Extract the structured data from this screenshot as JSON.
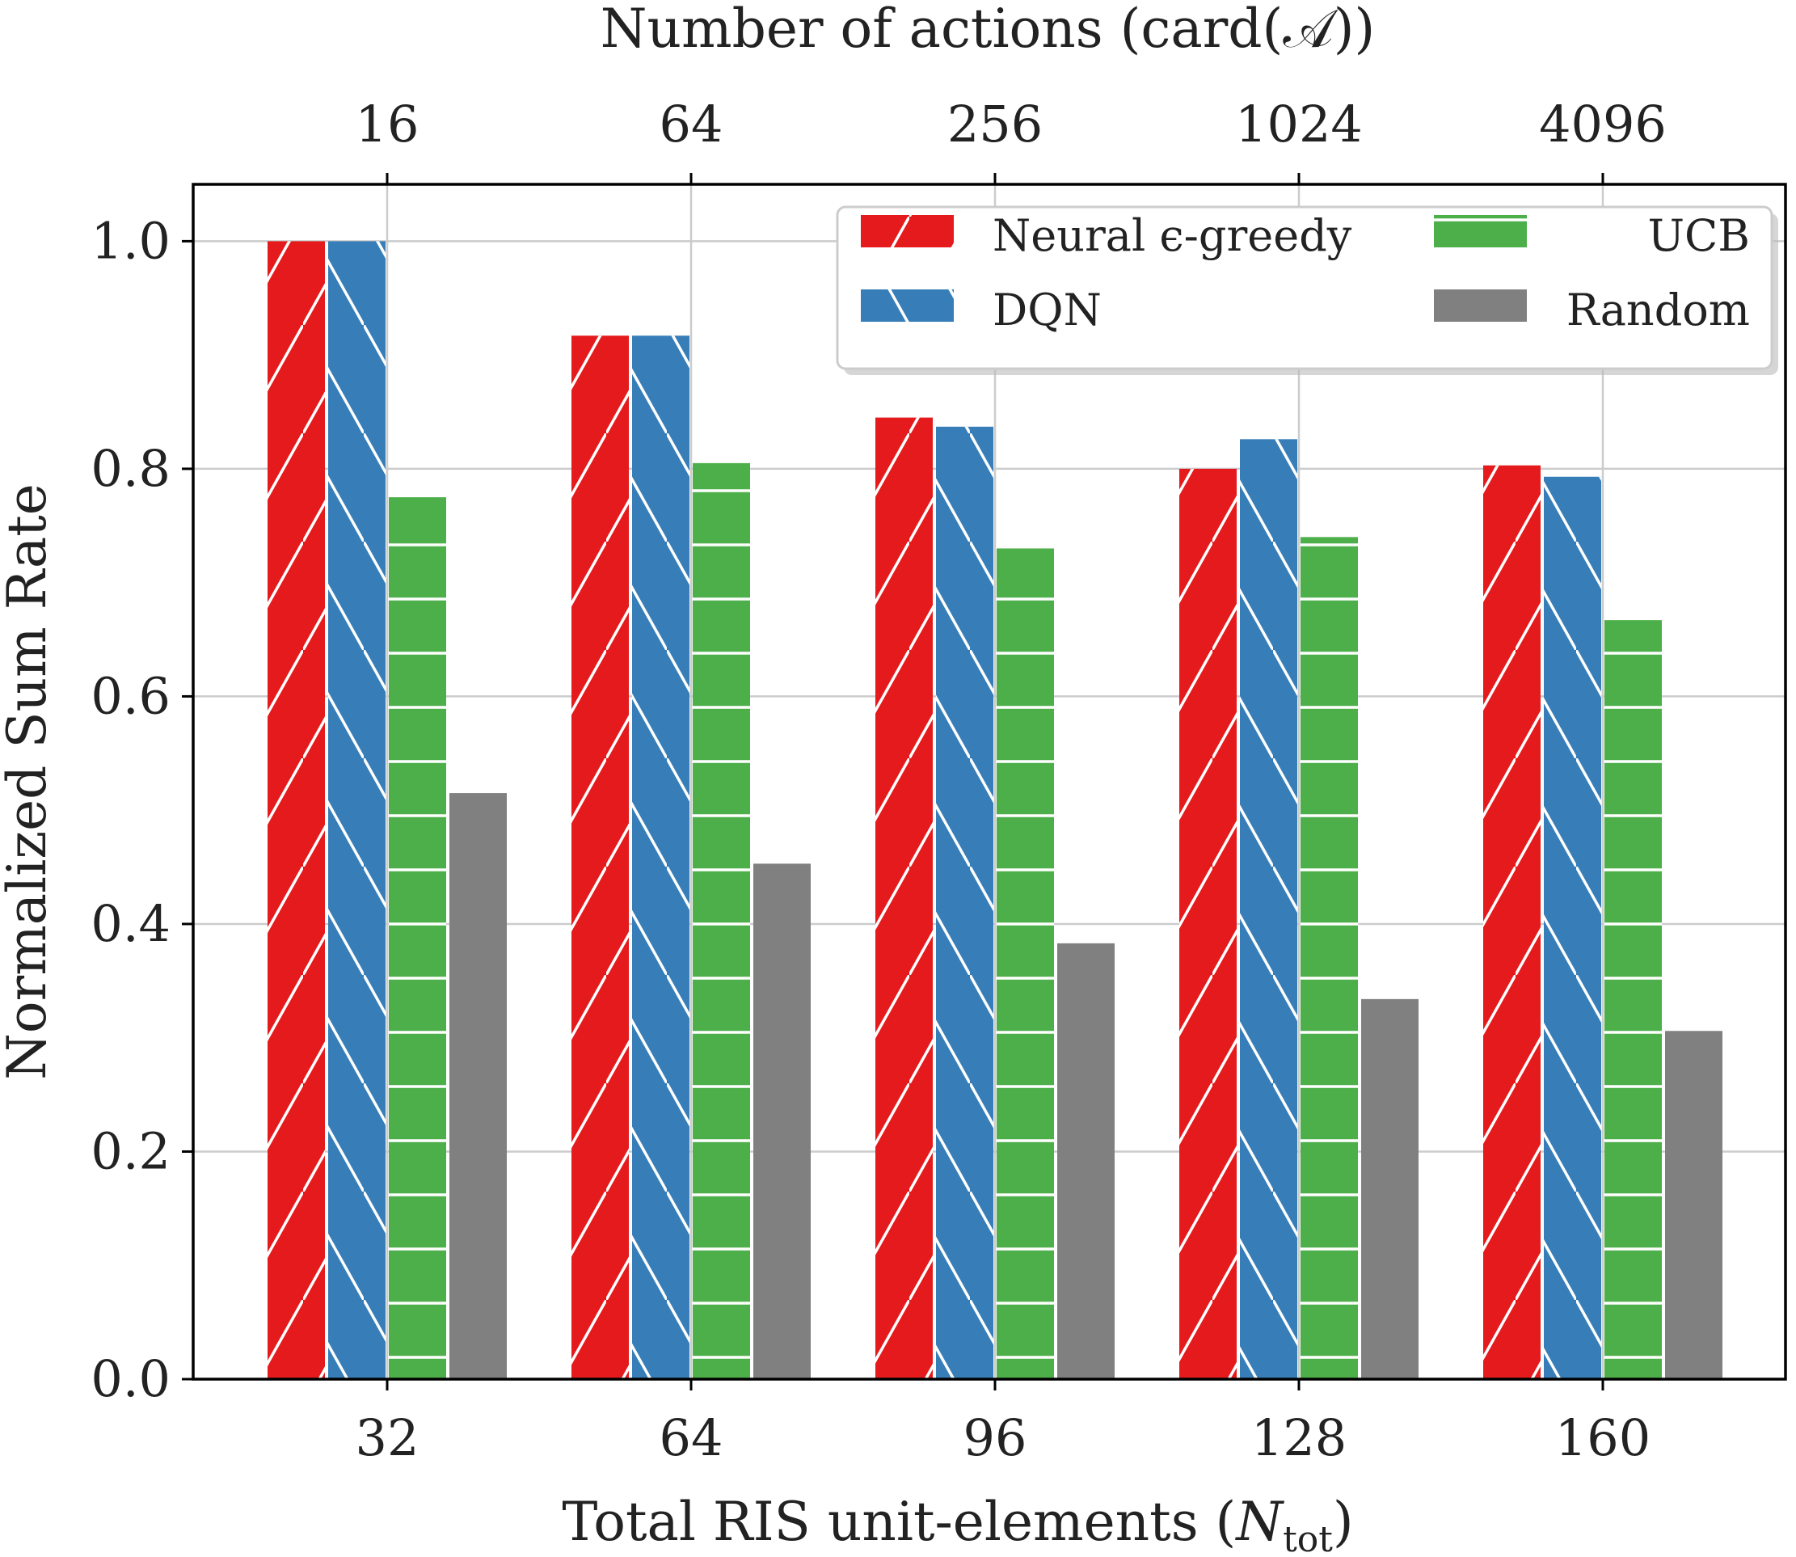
{
  "chart_data": {
    "type": "bar",
    "xlabel": "Total RIS unit-elements",
    "xlabel_symbol": "N",
    "xlabel_subscript": "tot",
    "top_xlabel": "Number of actions (card(𝒜))",
    "ylabel": "Normalized Sum Rate",
    "categories": [
      "32",
      "64",
      "96",
      "128",
      "160"
    ],
    "top_categories": [
      "16",
      "64",
      "256",
      "1024",
      "4096"
    ],
    "ylim": [
      0,
      1.05
    ],
    "yticks": [
      "0.0",
      "0.2",
      "0.4",
      "0.6",
      "0.8",
      "1.0"
    ],
    "grid": true,
    "legend_position": "top-right",
    "series": [
      {
        "name": "Neural ϵ-greedy",
        "color": "#e41a1c",
        "hatch": "forward-diagonal",
        "values": [
          1.0,
          0.917,
          0.845,
          0.8,
          0.803
        ]
      },
      {
        "name": "DQN",
        "color": "#377eb8",
        "hatch": "back-diagonal",
        "values": [
          1.0,
          0.917,
          0.837,
          0.826,
          0.793
        ]
      },
      {
        "name": "UCB",
        "color": "#4daf4a",
        "hatch": "horizontal",
        "values": [
          0.775,
          0.805,
          0.73,
          0.74,
          0.667
        ]
      },
      {
        "name": "Random",
        "color": "#808080",
        "hatch": "none",
        "values": [
          0.515,
          0.453,
          0.383,
          0.334,
          0.306
        ]
      }
    ]
  }
}
